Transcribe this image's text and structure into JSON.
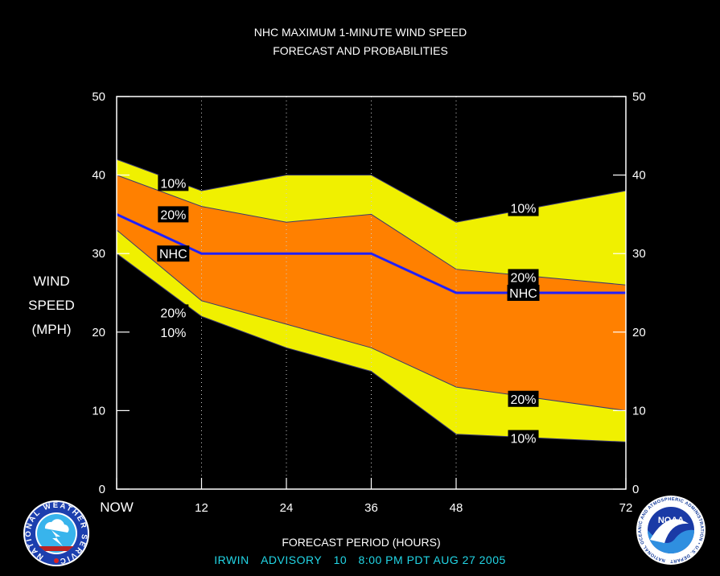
{
  "chart_data": {
    "type": "area",
    "title": [
      "NHC MAXIMUM 1-MINUTE WIND SPEED",
      "FORECAST AND PROBABILITIES"
    ],
    "xlabel": "FORECAST PERIOD (HOURS)",
    "ylabel": [
      "WIND",
      "SPEED",
      "(MPH)"
    ],
    "x": [
      0,
      12,
      24,
      36,
      48,
      72
    ],
    "x_tick_labels": [
      "NOW",
      "12",
      "24",
      "36",
      "48",
      "72"
    ],
    "ylim": [
      0,
      50
    ],
    "xlim": [
      0,
      72
    ],
    "y_ticks": [
      0,
      10,
      20,
      30,
      40,
      50
    ],
    "grid": "vertical dotted lines at 12, 24, 36, 48",
    "series": [
      {
        "name": "10%",
        "values": [
          42,
          38,
          40,
          40,
          34,
          38
        ],
        "color": "#f0f000"
      },
      {
        "name": "20%",
        "values": [
          40,
          36,
          34,
          35,
          28,
          26
        ],
        "color": "#ff8000"
      },
      {
        "name": "NHC",
        "values": [
          35,
          30,
          30,
          30,
          25,
          25
        ],
        "color": "#2020ff"
      },
      {
        "name": "20%",
        "values": [
          33,
          24,
          21,
          18,
          13,
          10
        ],
        "color": "#ff8000"
      },
      {
        "name": "10%",
        "values": [
          30,
          22,
          18,
          15,
          7,
          6
        ],
        "color": "#f0f000"
      }
    ],
    "annotations": [
      {
        "text": "10%",
        "x": 8,
        "y": 39
      },
      {
        "text": "20%",
        "x": 8,
        "y": 35
      },
      {
        "text": "NHC",
        "x": 8,
        "y": 30
      },
      {
        "text": "20%",
        "x": 8,
        "y": 22.5
      },
      {
        "text": "10%",
        "x": 8,
        "y": 20
      },
      {
        "text": "10%",
        "x": 57.5,
        "y": 35.8
      },
      {
        "text": "20%",
        "x": 57.5,
        "y": 27
      },
      {
        "text": "NHC",
        "x": 57.5,
        "y": 25
      },
      {
        "text": "20%",
        "x": 57.5,
        "y": 11.5
      },
      {
        "text": "10%",
        "x": 57.5,
        "y": 6.5
      }
    ]
  },
  "advisory": {
    "storm": "IRWIN",
    "label": "ADVISORY",
    "number": "10",
    "time": "8:00 PM PDT AUG 27 2005"
  },
  "logos": {
    "left": "NATIONAL WEATHER SERVICE",
    "right_center": "NOAA",
    "right_ring": "NATIONAL OCEANIC AND ATMOSPHERIC ADMINISTRATION • U.S. DEPARTMENT OF COMMERCE"
  },
  "colors": {
    "yellow": "#f0f000",
    "orange": "#ff8000",
    "nhc_line": "#2020ff",
    "advisory_text": "#22d6e6"
  }
}
